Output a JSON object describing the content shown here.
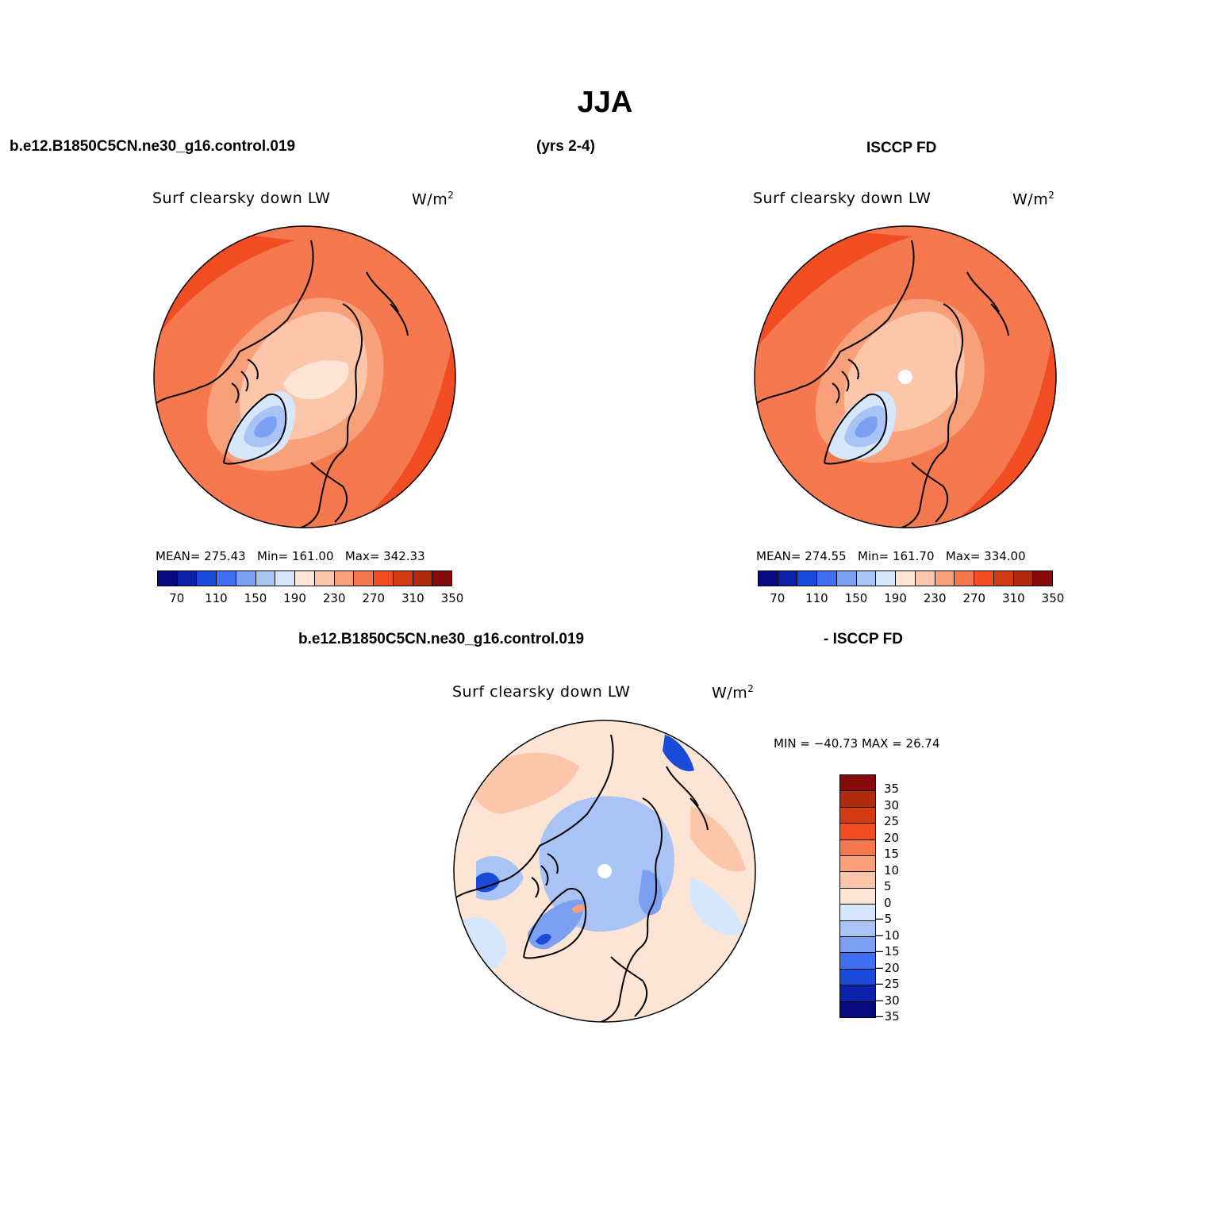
{
  "page": {
    "title": "JJA",
    "case_name": "b.e12.B1850C5CN.ne30_g16.control.019",
    "years": "(yrs 2-4)",
    "obs_name": "ISCCP FD",
    "diff_case": "b.e12.B1850C5CN.ne30_g16.control.019",
    "diff_obs": "- ISCCP FD"
  },
  "panels": {
    "model": {
      "title": "Surf clearsky down LW",
      "units": "W/m",
      "units_sup": "2",
      "mean_label": "MEAN= 275.43",
      "min_label": "Min= 161.00",
      "max_label": "Max= 342.33"
    },
    "obs": {
      "title": "Surf clearsky down LW",
      "units": "W/m",
      "units_sup": "2",
      "mean_label": "MEAN= 274.55",
      "min_label": "Min= 161.70",
      "max_label": "Max= 334.00"
    },
    "diff": {
      "title": "Surf clearsky down LW",
      "units": "W/m",
      "units_sup": "2",
      "minmax_label": "MIN = −40.73 MAX =   26.74"
    }
  },
  "colorbars": {
    "abs": {
      "colors": [
        "#0a0a80",
        "#0a21a8",
        "#1a4bd8",
        "#3e6ff0",
        "#7b9ff2",
        "#a9c3f5",
        "#d6e6fb",
        "#fde5d6",
        "#fbc6aa",
        "#f7a07a",
        "#f5784f",
        "#f24d22",
        "#d43a12",
        "#b02b0e",
        "#870a0a"
      ],
      "ticks": [
        "70",
        "110",
        "150",
        "190",
        "230",
        "270",
        "310",
        "350"
      ]
    },
    "diff": {
      "colors": [
        "#870a0a",
        "#b02b0e",
        "#d43a12",
        "#f24d22",
        "#f5784f",
        "#f7a07a",
        "#fbc6aa",
        "#fde5d6",
        "#d6e6fb",
        "#a9c3f5",
        "#7b9ff2",
        "#3e6ff0",
        "#1a4bd8",
        "#0a21a8",
        "#0a0a80"
      ],
      "ticks": [
        "35",
        "30",
        "25",
        "20",
        "15",
        "10",
        "5",
        "0",
        "−5",
        "−10",
        "−15",
        "−20",
        "−25",
        "−30",
        "−35"
      ]
    }
  },
  "maps": {
    "model": {
      "base": "#f5784f",
      "zones": [
        {
          "c": "#f24d22"
        },
        {
          "c": "#f7a07a"
        },
        {
          "c": "#fbc6aa"
        },
        {
          "c": "#fde5d6"
        },
        {
          "c": "#d6e6fb"
        },
        {
          "c": "#a9c3f5"
        },
        {
          "c": "#7b9ff2"
        }
      ],
      "has_pole_hole": false
    },
    "obs": {
      "base": "#f5784f",
      "zones": [
        {
          "c": "#f24d22"
        },
        {
          "c": "#f7a07a"
        },
        {
          "c": "#fbc6aa"
        },
        {
          "c": "#d6e6fb"
        },
        {
          "c": "#a9c3f5"
        },
        {
          "c": "#7b9ff2"
        }
      ],
      "has_pole_hole": true
    },
    "diff": {
      "base": "#fde5d6",
      "zones": [
        {
          "c": "#fbc6aa"
        },
        {
          "c": "#d6e6fb"
        },
        {
          "c": "#a9c3f5"
        },
        {
          "c": "#7b9ff2"
        },
        {
          "c": "#1a4bd8"
        },
        {
          "c": "#f7a07a"
        }
      ],
      "has_pole_hole": true
    }
  }
}
